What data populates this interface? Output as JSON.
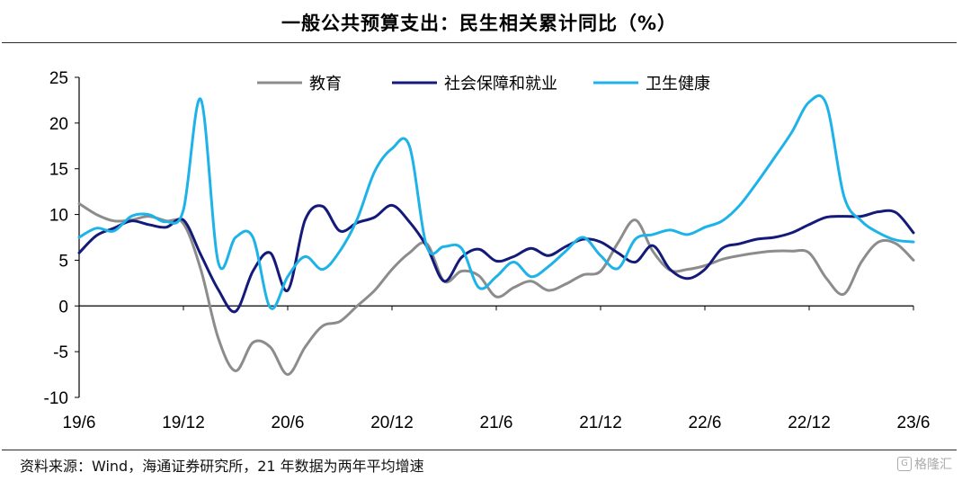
{
  "title": "一般公共预算支出：民生相关累计同比（%）",
  "source": "资料来源：Wind，海通证券研究所，21 年数据为两年平均增速",
  "watermark": "格隆汇",
  "colors": {
    "education": "#8c8c8c",
    "social": "#141a7a",
    "health": "#1eb3e8"
  },
  "chart_data": {
    "type": "line",
    "title": "一般公共预算支出：民生相关累计同比（%）",
    "ylim": [
      -10,
      25
    ],
    "yticks": [
      -10,
      -5,
      0,
      5,
      10,
      15,
      20,
      25
    ],
    "x_tick_labels": [
      "19/6",
      "19/12",
      "20/6",
      "20/12",
      "21/6",
      "21/12",
      "22/6",
      "22/12",
      "23/6"
    ],
    "legend_position": "top",
    "x": [
      "2019-06",
      "2019-07",
      "2019-08",
      "2019-09",
      "2019-10",
      "2019-11",
      "2019-12",
      "2020-01",
      "2020-02",
      "2020-03",
      "2020-04",
      "2020-05",
      "2020-06",
      "2020-07",
      "2020-08",
      "2020-09",
      "2020-10",
      "2020-11",
      "2020-12",
      "2021-01",
      "2021-02",
      "2021-03",
      "2021-04",
      "2021-05",
      "2021-06",
      "2021-07",
      "2021-08",
      "2021-09",
      "2021-10",
      "2021-11",
      "2021-12",
      "2022-01",
      "2022-02",
      "2022-03",
      "2022-04",
      "2022-05",
      "2022-06",
      "2022-07",
      "2022-08",
      "2022-09",
      "2022-10",
      "2022-11",
      "2022-12",
      "2023-01",
      "2023-02",
      "2023-03",
      "2023-04",
      "2023-05",
      "2023-06"
    ],
    "series": [
      {
        "name": "教育",
        "color": "#8c8c8c",
        "values": [
          11.2,
          10,
          9.3,
          9.4,
          9.8,
          9.3,
          9.0,
          4.0,
          -3.5,
          -7.1,
          -4.0,
          -4.5,
          -7.5,
          -4.5,
          -2.2,
          -1.7,
          0.0,
          1.7,
          4.0,
          5.8,
          6.8,
          2.7,
          3.8,
          3.3,
          1.0,
          2.0,
          2.7,
          1.7,
          2.4,
          3.4,
          3.8,
          6.9,
          9.4,
          6.0,
          3.9,
          4.0,
          4.4,
          5.1,
          5.5,
          5.8,
          6.0,
          6.0,
          5.8,
          3.0,
          1.3,
          4.8,
          7.0,
          6.8,
          5.0
        ]
      },
      {
        "name": "社会保障和就业",
        "color": "#141a7a",
        "values": [
          5.8,
          7.7,
          8.5,
          9.3,
          8.9,
          8.6,
          9.4,
          5.6,
          1.8,
          -0.6,
          3.8,
          5.8,
          1.7,
          9.4,
          10.9,
          8.2,
          9.1,
          9.7,
          11.0,
          9.2,
          6.5,
          2.7,
          5.3,
          6.2,
          4.9,
          5.4,
          6.3,
          5.5,
          6.5,
          7.3,
          7.0,
          5.8,
          4.8,
          6.6,
          4.0,
          3.0,
          4.0,
          6.3,
          6.8,
          7.3,
          7.5,
          8.0,
          8.9,
          9.7,
          9.8,
          9.8,
          10.3,
          10.2,
          8.0
        ]
      },
      {
        "name": "卫生健康",
        "color": "#1eb3e8",
        "values": [
          7.5,
          8.5,
          8.2,
          9.8,
          10.0,
          9.2,
          10.5,
          22.6,
          4.8,
          7.5,
          7.5,
          -0.2,
          3.2,
          5.4,
          4.0,
          6.0,
          9.5,
          14.7,
          17.2,
          17.5,
          6.5,
          6.5,
          6.3,
          2.0,
          3.2,
          4.8,
          3.2,
          4.3,
          6.0,
          7.5,
          5.5,
          4.1,
          7.3,
          7.8,
          8.3,
          7.8,
          8.6,
          9.3,
          11.0,
          13.5,
          16.2,
          19.0,
          22.3,
          22.0,
          12.0,
          9.3,
          8.0,
          7.2,
          7.0
        ]
      }
    ]
  }
}
